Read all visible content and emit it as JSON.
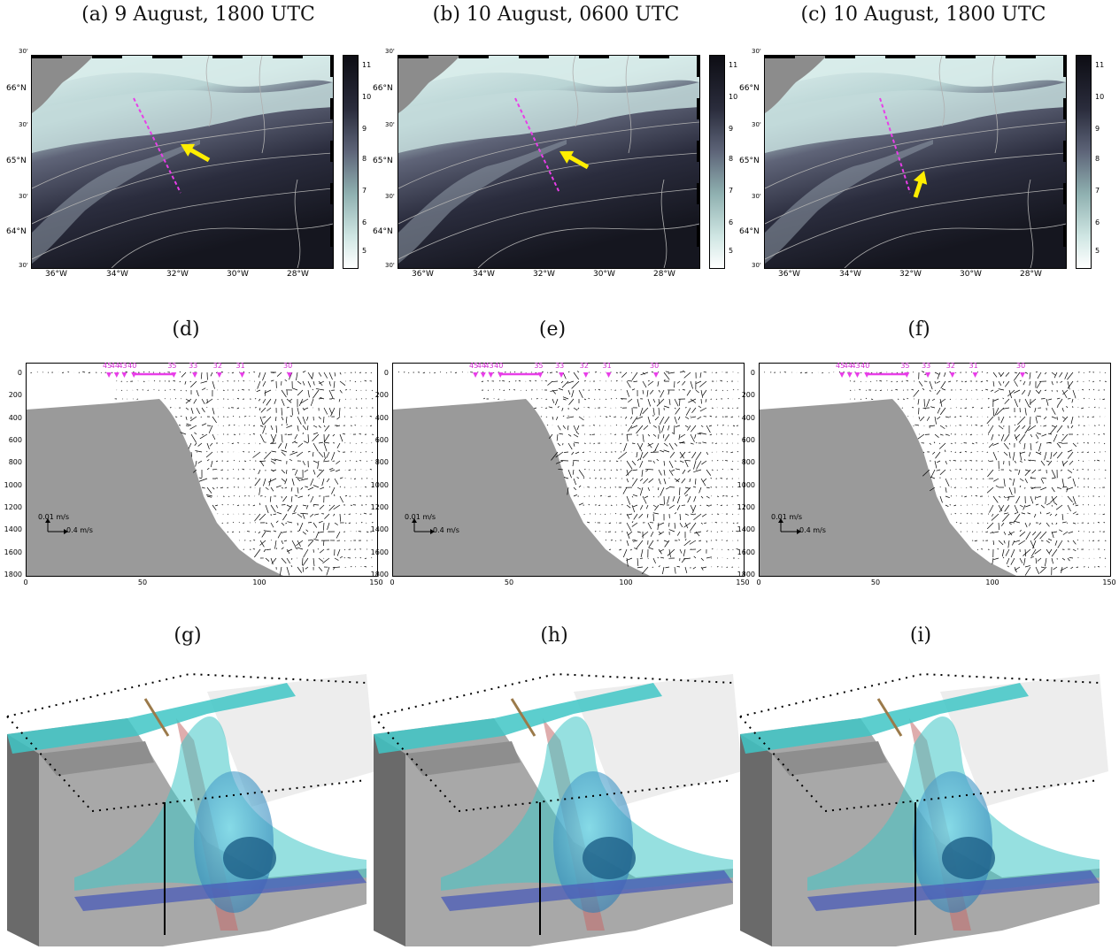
{
  "map_titles": [
    "(a) 9 August, 1800 UTC",
    "(b) 10 August, 0600 UTC",
    "(c) 10 August, 1800 UTC"
  ],
  "section_titles": [
    "(d)",
    "(e)",
    "(f)"
  ],
  "render_titles": [
    "(g)",
    "(h)",
    "(i)"
  ],
  "map_axes": {
    "lon_ticks": [
      "36°W",
      "34°W",
      "32°W",
      "30°W",
      "28°W"
    ],
    "lat_ticks": [
      "66°N",
      "65°N",
      "64°N"
    ],
    "lat_minor": [
      "30'",
      "30'",
      "30'",
      "30'"
    ],
    "colorbar_ticks": [
      "11",
      "10",
      "9",
      "8",
      "7",
      "6",
      "5"
    ]
  },
  "section_axes": {
    "x_ticks": [
      "0",
      "50",
      "100",
      "150"
    ],
    "y_ticks": [
      "0",
      "200",
      "400",
      "600",
      "800",
      "1000",
      "1200",
      "1400",
      "1600",
      "1800"
    ],
    "scale_vertical": "0.01 m/s",
    "scale_horizontal": "0.4 m/s",
    "stations": [
      "45",
      "44",
      "43",
      "40",
      "35",
      "33",
      "32",
      "31",
      "30"
    ]
  },
  "colors": {
    "section_line": "#e83ee8",
    "arrow": "#ffee00",
    "topography": "#9a9a9a",
    "isosurface": "#3fc6c6"
  }
}
